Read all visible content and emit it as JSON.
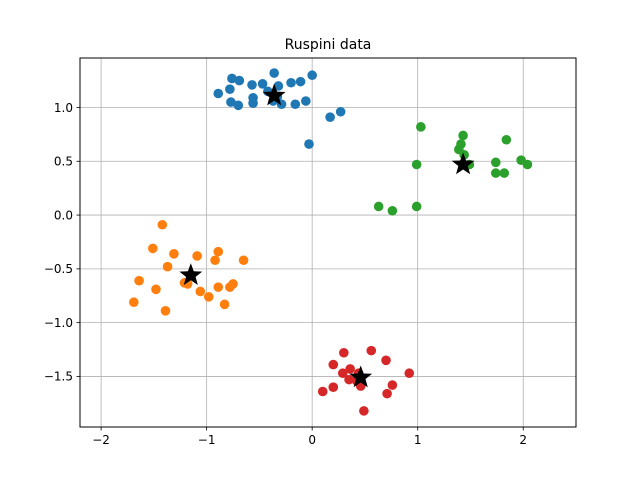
{
  "chart_data": {
    "type": "scatter",
    "title": "Ruspini data",
    "xlabel": "",
    "ylabel": "",
    "xlim": [
      -2.2,
      2.5
    ],
    "ylim": [
      -1.97,
      1.46
    ],
    "xticks": [
      -2,
      -1,
      0,
      1,
      2
    ],
    "xtick_labels": [
      "−2",
      "−1",
      "0",
      "1",
      "2"
    ],
    "yticks": [
      -1.5,
      -1.0,
      -0.5,
      0.0,
      0.5,
      1.0
    ],
    "ytick_labels": [
      "−1.5",
      "−1.0",
      "−0.5",
      "0.0",
      "0.5",
      "1.0"
    ],
    "grid": true,
    "series": [
      {
        "color": "#1f77b4",
        "points": [
          [
            -0.89,
            1.13
          ],
          [
            -0.76,
            1.27
          ],
          [
            -0.69,
            1.25
          ],
          [
            -0.57,
            1.21
          ],
          [
            -0.47,
            1.22
          ],
          [
            -0.36,
            1.32
          ],
          [
            -0.32,
            1.2
          ],
          [
            -0.2,
            1.23
          ],
          [
            -0.11,
            1.24
          ],
          [
            0.0,
            1.3
          ],
          [
            -0.78,
            1.17
          ],
          [
            -0.77,
            1.05
          ],
          [
            -0.7,
            1.02
          ],
          [
            -0.56,
            1.04
          ],
          [
            -0.56,
            1.09
          ],
          [
            -0.37,
            1.06
          ],
          [
            -0.29,
            1.03
          ],
          [
            -0.16,
            1.03
          ],
          [
            -0.06,
            1.06
          ],
          [
            0.17,
            0.91
          ],
          [
            0.27,
            0.96
          ],
          [
            -0.03,
            0.66
          ],
          [
            -0.42,
            1.15
          ],
          [
            -0.33,
            1.1
          ]
        ],
        "centroid": [
          -0.36,
          1.11
        ]
      },
      {
        "color": "#2ca02c",
        "points": [
          [
            1.03,
            0.82
          ],
          [
            1.43,
            0.74
          ],
          [
            1.39,
            0.61
          ],
          [
            1.41,
            0.66
          ],
          [
            1.44,
            0.56
          ],
          [
            1.49,
            0.47
          ],
          [
            1.84,
            0.7
          ],
          [
            1.74,
            0.49
          ],
          [
            1.74,
            0.39
          ],
          [
            1.82,
            0.39
          ],
          [
            1.98,
            0.51
          ],
          [
            2.04,
            0.47
          ],
          [
            0.99,
            0.47
          ],
          [
            0.63,
            0.08
          ],
          [
            0.76,
            0.04
          ],
          [
            0.99,
            0.08
          ]
        ],
        "centroid": [
          1.43,
          0.47
        ]
      },
      {
        "color": "#ff7f0e",
        "points": [
          [
            -1.42,
            -0.09
          ],
          [
            -1.51,
            -0.31
          ],
          [
            -1.37,
            -0.48
          ],
          [
            -1.31,
            -0.36
          ],
          [
            -1.09,
            -0.38
          ],
          [
            -0.92,
            -0.42
          ],
          [
            -0.89,
            -0.34
          ],
          [
            -0.65,
            -0.42
          ],
          [
            -1.64,
            -0.61
          ],
          [
            -1.21,
            -0.63
          ],
          [
            -1.06,
            -0.71
          ],
          [
            -0.89,
            -0.67
          ],
          [
            -0.78,
            -0.67
          ],
          [
            -0.75,
            -0.64
          ],
          [
            -1.48,
            -0.69
          ],
          [
            -1.69,
            -0.81
          ],
          [
            -0.83,
            -0.83
          ],
          [
            -0.98,
            -0.76
          ],
          [
            -1.39,
            -0.89
          ],
          [
            -1.18,
            -0.64
          ]
        ],
        "centroid": [
          -1.15,
          -0.56
        ]
      },
      {
        "color": "#d62728",
        "points": [
          [
            0.3,
            -1.28
          ],
          [
            0.56,
            -1.26
          ],
          [
            0.2,
            -1.39
          ],
          [
            0.44,
            -1.47
          ],
          [
            0.29,
            -1.47
          ],
          [
            0.36,
            -1.43
          ],
          [
            0.7,
            -1.35
          ],
          [
            0.92,
            -1.47
          ],
          [
            0.35,
            -1.53
          ],
          [
            0.42,
            -1.54
          ],
          [
            0.76,
            -1.58
          ],
          [
            0.2,
            -1.6
          ],
          [
            0.1,
            -1.64
          ],
          [
            0.46,
            -1.59
          ],
          [
            0.71,
            -1.66
          ],
          [
            0.49,
            -1.82
          ]
        ],
        "centroid": [
          0.46,
          -1.51
        ]
      }
    ],
    "centroid_color": "#000000",
    "frame_color": "#000000",
    "grid_color": "#b0b0b0"
  }
}
